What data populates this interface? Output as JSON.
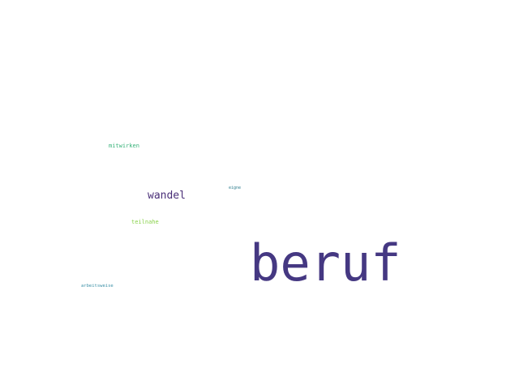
{
  "words": {
    "beruf": {
      "text": "beruf",
      "color": "#453882"
    },
    "wandel": {
      "text": "wandel",
      "color": "#4a2f78"
    },
    "mitwirken": {
      "text": "mitwirken",
      "color": "#38b27a"
    },
    "teilnahe": {
      "text": "teilnahe",
      "color": "#8ad24c"
    },
    "eigne": {
      "text": "eigne",
      "color": "#2f7e8e"
    },
    "arbeitsweise": {
      "text": "arbeitsweise",
      "color": "#3a8fa6"
    }
  }
}
